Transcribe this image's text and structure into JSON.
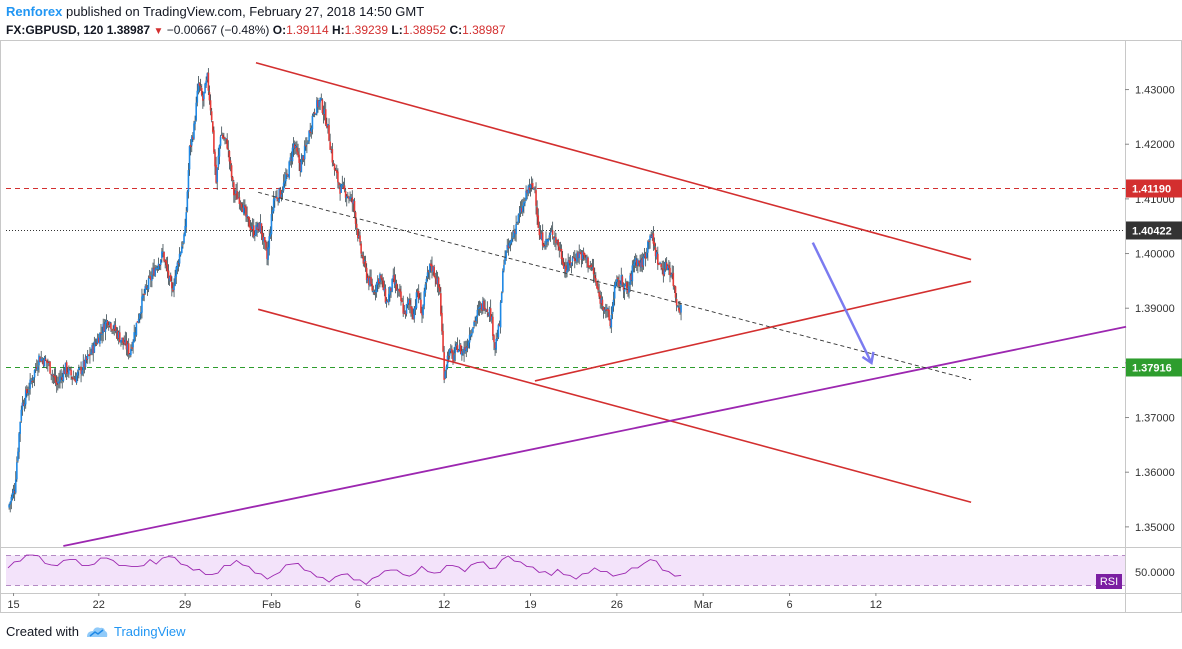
{
  "header": {
    "author": "Renforex",
    "published_text": "published on TradingView.com, February 27, 2018 14:50 GMT",
    "symbol": "FX:GBPUSD, 120",
    "last": "1.38987",
    "change": "−0.00667 (−0.48%)",
    "o_label": "O:",
    "o": "1.39114",
    "h_label": "H:",
    "h": "1.39239",
    "l_label": "L:",
    "l": "1.38952",
    "c_label": "C:",
    "c": "1.38987"
  },
  "footer": {
    "created_with": "Created with",
    "brand": "TradingView"
  },
  "colors": {
    "up": "#1e88e5",
    "down": "#e53935",
    "wick": "#37474f",
    "trend": "#d32f2f",
    "support": "#9c27b0",
    "projection": "#7b7bf0",
    "resistance_line": "#d32f2f",
    "support_line": "#2e9d2e",
    "current_line": "#333333",
    "rsi_line": "#9c27b0",
    "rsi_fill": "#f3e3fa"
  },
  "chart_data": {
    "type": "candlestick",
    "price_axis": {
      "ylim": [
        1.3465,
        1.4387
      ],
      "ticks": [
        "1.43000",
        "1.42000",
        "1.41000",
        "1.40000",
        "1.39000",
        "1.38000",
        "1.37000",
        "1.36000",
        "1.35000"
      ],
      "tick_values": [
        1.43,
        1.42,
        1.41,
        1.4,
        1.39,
        1.38,
        1.37,
        1.36,
        1.35
      ]
    },
    "x_axis": {
      "labels": [
        "15",
        "22",
        "29",
        "Feb",
        "6",
        "12",
        "19",
        "26",
        "Mar",
        "6",
        "12"
      ],
      "bar_index": [
        5,
        82,
        160,
        238,
        316,
        394,
        472,
        550,
        628,
        706,
        784
      ]
    },
    "bars_per_day": 11.14,
    "levels": [
      {
        "label": "1.41190",
        "value": 1.4119,
        "style": "resistance"
      },
      {
        "label": "1.40422",
        "value": 1.40422,
        "style": "current"
      },
      {
        "label": "1.37916",
        "value": 1.37916,
        "style": "support"
      }
    ],
    "path_points": [
      [
        0,
        1.3535
      ],
      [
        6,
        1.357
      ],
      [
        12,
        1.372
      ],
      [
        20,
        1.376
      ],
      [
        28,
        1.381
      ],
      [
        36,
        1.38
      ],
      [
        44,
        1.376
      ],
      [
        52,
        1.379
      ],
      [
        60,
        1.377
      ],
      [
        70,
        1.38
      ],
      [
        80,
        1.384
      ],
      [
        90,
        1.388
      ],
      [
        100,
        1.385
      ],
      [
        110,
        1.382
      ],
      [
        122,
        1.392
      ],
      [
        132,
        1.397
      ],
      [
        140,
        1.4
      ],
      [
        148,
        1.393
      ],
      [
        154,
        1.399
      ],
      [
        160,
        1.404
      ],
      [
        164,
        1.419
      ],
      [
        168,
        1.423
      ],
      [
        172,
        1.431
      ],
      [
        176,
        1.428
      ],
      [
        180,
        1.432
      ],
      [
        184,
        1.425
      ],
      [
        188,
        1.413
      ],
      [
        192,
        1.422
      ],
      [
        198,
        1.42
      ],
      [
        204,
        1.411
      ],
      [
        210,
        1.41
      ],
      [
        216,
        1.406
      ],
      [
        222,
        1.404
      ],
      [
        228,
        1.405
      ],
      [
        234,
        1.399
      ],
      [
        240,
        1.41
      ],
      [
        246,
        1.411
      ],
      [
        252,
        1.414
      ],
      [
        258,
        1.42
      ],
      [
        264,
        1.416
      ],
      [
        270,
        1.42
      ],
      [
        276,
        1.426
      ],
      [
        282,
        1.428
      ],
      [
        288,
        1.424
      ],
      [
        294,
        1.416
      ],
      [
        300,
        1.412
      ],
      [
        306,
        1.411
      ],
      [
        312,
        1.409
      ],
      [
        318,
        1.401
      ],
      [
        324,
        1.396
      ],
      [
        330,
        1.393
      ],
      [
        336,
        1.396
      ],
      [
        342,
        1.391
      ],
      [
        348,
        1.395
      ],
      [
        354,
        1.392
      ],
      [
        358,
        1.389
      ],
      [
        362,
        1.391
      ],
      [
        366,
        1.389
      ],
      [
        370,
        1.393
      ],
      [
        374,
        1.389
      ],
      [
        378,
        1.395
      ],
      [
        382,
        1.398
      ],
      [
        386,
        1.396
      ],
      [
        390,
        1.393
      ],
      [
        394,
        1.378
      ],
      [
        398,
        1.382
      ],
      [
        402,
        1.381
      ],
      [
        406,
        1.383
      ],
      [
        410,
        1.382
      ],
      [
        414,
        1.383
      ],
      [
        418,
        1.386
      ],
      [
        424,
        1.389
      ],
      [
        430,
        1.391
      ],
      [
        436,
        1.389
      ],
      [
        440,
        1.383
      ],
      [
        444,
        1.387
      ],
      [
        448,
        1.399
      ],
      [
        454,
        1.402
      ],
      [
        460,
        1.406
      ],
      [
        466,
        1.409
      ],
      [
        470,
        1.412
      ],
      [
        476,
        1.412
      ],
      [
        480,
        1.403
      ],
      [
        486,
        1.402
      ],
      [
        492,
        1.404
      ],
      [
        498,
        1.401
      ],
      [
        504,
        1.397
      ],
      [
        510,
        1.399
      ],
      [
        516,
        1.4
      ],
      [
        522,
        1.399
      ],
      [
        528,
        1.397
      ],
      [
        534,
        1.392
      ],
      [
        540,
        1.39
      ],
      [
        544,
        1.387
      ],
      [
        548,
        1.394
      ],
      [
        554,
        1.395
      ],
      [
        560,
        1.393
      ],
      [
        566,
        1.399
      ],
      [
        572,
        1.398
      ],
      [
        576,
        1.4
      ],
      [
        580,
        1.404
      ],
      [
        584,
        1.401
      ],
      [
        588,
        1.398
      ],
      [
        592,
        1.397
      ],
      [
        596,
        1.398
      ],
      [
        600,
        1.396
      ],
      [
        604,
        1.391
      ],
      [
        608,
        1.39
      ]
    ],
    "rsi": {
      "label": "RSI",
      "value_label": "50.0000",
      "bands": [
        70,
        30
      ],
      "ylim": [
        20,
        80
      ],
      "values": [
        55,
        60,
        64,
        69,
        72,
        68,
        61,
        56,
        58,
        62,
        66,
        63,
        58,
        55,
        60,
        65,
        68,
        62,
        58,
        55,
        57,
        54,
        58,
        63,
        60,
        65,
        70,
        66,
        60,
        55,
        52,
        50,
        46,
        43,
        48,
        55,
        58,
        62,
        59,
        54,
        48,
        44,
        40,
        42,
        49,
        56,
        60,
        58,
        52,
        47,
        43,
        39,
        36,
        40,
        46,
        44,
        39,
        36,
        33,
        38,
        44,
        48,
        52,
        49,
        46,
        41,
        48,
        54,
        50,
        45,
        49,
        55,
        58,
        53,
        50,
        56,
        62,
        60,
        54,
        52,
        66,
        68,
        64,
        60,
        57,
        53,
        49,
        47,
        45,
        50,
        46,
        42,
        40,
        44,
        48,
        52,
        50,
        47,
        44,
        43,
        48,
        52,
        55,
        58,
        66,
        61,
        52,
        47,
        44,
        42
      ]
    }
  }
}
